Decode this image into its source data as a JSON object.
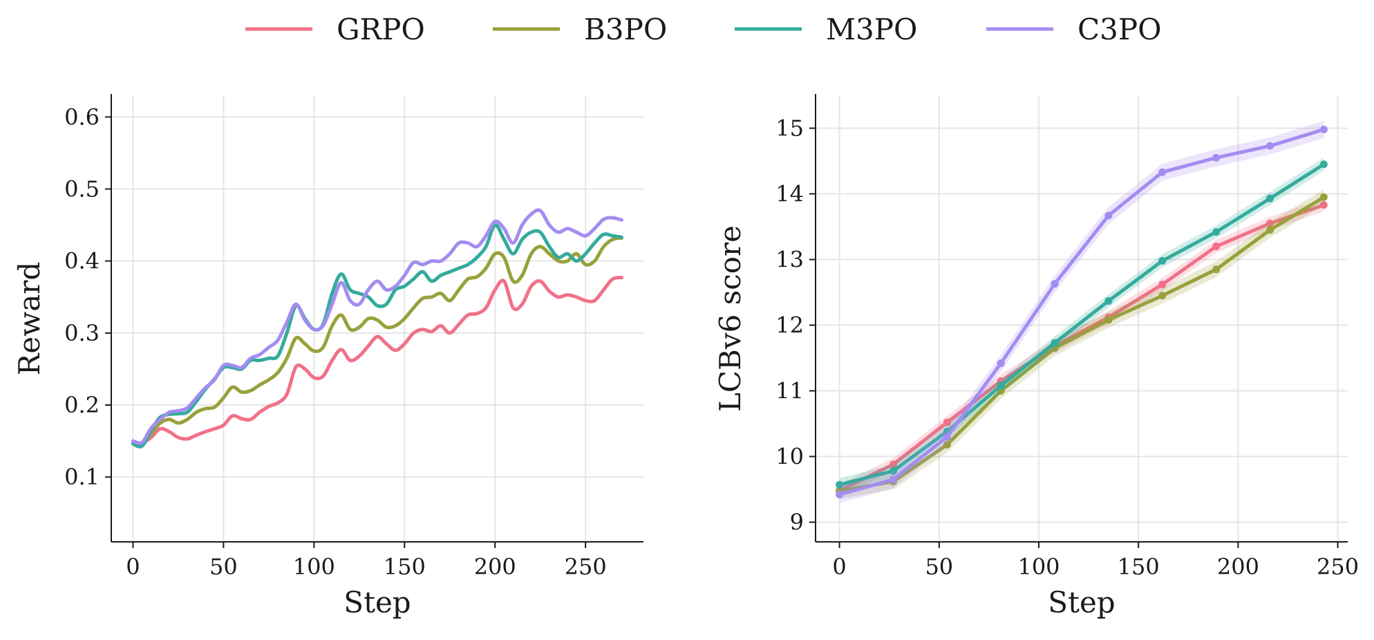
{
  "legend": {
    "items": [
      {
        "label": "GRPO",
        "color": "#F07188"
      },
      {
        "label": "B3PO",
        "color": "#98A13B"
      },
      {
        "label": "M3PO",
        "color": "#34AB9D"
      },
      {
        "label": "C3PO",
        "color": "#A48CF1"
      }
    ]
  },
  "chart_data": [
    {
      "type": "line",
      "xlabel": "Step",
      "ylabel": "Reward",
      "xlim": [
        -12,
        282
      ],
      "ylim": [
        0.01,
        0.63
      ],
      "xticks": [
        0,
        50,
        100,
        150,
        200,
        250
      ],
      "yticks": [
        0.1,
        0.2,
        0.3,
        0.4,
        0.5,
        0.6
      ],
      "xtick_labels": [
        "0",
        "50",
        "100",
        "150",
        "200",
        "250"
      ],
      "ytick_labels": [
        "0.1",
        "0.2",
        "0.3",
        "0.4",
        "0.5",
        "0.6"
      ],
      "grid": true,
      "x": [
        0,
        5,
        10,
        15,
        20,
        25,
        30,
        35,
        40,
        45,
        50,
        55,
        60,
        65,
        70,
        75,
        80,
        85,
        90,
        95,
        100,
        105,
        110,
        115,
        120,
        125,
        130,
        135,
        140,
        145,
        150,
        155,
        160,
        165,
        170,
        175,
        180,
        185,
        190,
        195,
        200,
        205,
        210,
        215,
        220,
        225,
        230,
        235,
        240,
        245,
        250,
        255,
        260,
        265,
        270
      ],
      "series": [
        {
          "name": "GRPO",
          "color": "#F07188",
          "values": [
            0.148,
            0.147,
            0.155,
            0.167,
            0.163,
            0.155,
            0.153,
            0.158,
            0.163,
            0.167,
            0.172,
            0.185,
            0.181,
            0.18,
            0.19,
            0.198,
            0.203,
            0.215,
            0.253,
            0.25,
            0.238,
            0.24,
            0.262,
            0.277,
            0.262,
            0.268,
            0.282,
            0.295,
            0.285,
            0.276,
            0.285,
            0.3,
            0.305,
            0.302,
            0.31,
            0.3,
            0.312,
            0.325,
            0.327,
            0.335,
            0.36,
            0.372,
            0.335,
            0.34,
            0.365,
            0.372,
            0.358,
            0.35,
            0.353,
            0.35,
            0.345,
            0.345,
            0.36,
            0.375,
            0.377
          ]
        },
        {
          "name": "B3PO",
          "color": "#98A13B",
          "values": [
            0.147,
            0.145,
            0.16,
            0.175,
            0.18,
            0.175,
            0.18,
            0.19,
            0.195,
            0.197,
            0.21,
            0.225,
            0.218,
            0.22,
            0.228,
            0.235,
            0.245,
            0.265,
            0.293,
            0.285,
            0.275,
            0.28,
            0.31,
            0.325,
            0.305,
            0.308,
            0.32,
            0.318,
            0.308,
            0.31,
            0.32,
            0.335,
            0.348,
            0.35,
            0.355,
            0.345,
            0.36,
            0.375,
            0.378,
            0.39,
            0.41,
            0.405,
            0.372,
            0.38,
            0.41,
            0.42,
            0.41,
            0.4,
            0.4,
            0.41,
            0.395,
            0.4,
            0.42,
            0.43,
            0.432
          ]
        },
        {
          "name": "M3PO",
          "color": "#34AB9D",
          "values": [
            0.146,
            0.143,
            0.165,
            0.183,
            0.187,
            0.188,
            0.19,
            0.205,
            0.222,
            0.236,
            0.252,
            0.252,
            0.25,
            0.262,
            0.262,
            0.265,
            0.268,
            0.3,
            0.338,
            0.32,
            0.305,
            0.312,
            0.355,
            0.382,
            0.36,
            0.355,
            0.35,
            0.338,
            0.34,
            0.36,
            0.365,
            0.375,
            0.385,
            0.372,
            0.38,
            0.385,
            0.39,
            0.395,
            0.405,
            0.42,
            0.45,
            0.43,
            0.41,
            0.43,
            0.44,
            0.44,
            0.42,
            0.405,
            0.41,
            0.4,
            0.41,
            0.425,
            0.437,
            0.435,
            0.433
          ]
        },
        {
          "name": "C3PO",
          "color": "#A48CF1",
          "values": [
            0.15,
            0.148,
            0.168,
            0.18,
            0.19,
            0.192,
            0.196,
            0.21,
            0.224,
            0.235,
            0.255,
            0.255,
            0.252,
            0.265,
            0.27,
            0.28,
            0.29,
            0.315,
            0.34,
            0.318,
            0.305,
            0.31,
            0.34,
            0.37,
            0.345,
            0.34,
            0.36,
            0.372,
            0.36,
            0.365,
            0.38,
            0.398,
            0.395,
            0.4,
            0.4,
            0.41,
            0.425,
            0.425,
            0.42,
            0.435,
            0.455,
            0.445,
            0.425,
            0.45,
            0.465,
            0.47,
            0.45,
            0.44,
            0.445,
            0.44,
            0.435,
            0.445,
            0.458,
            0.46,
            0.457
          ]
        }
      ]
    },
    {
      "type": "line",
      "xlabel": "Step",
      "ylabel": "LCBv6 score",
      "xlim": [
        -12,
        255
      ],
      "ylim": [
        8.7,
        15.5
      ],
      "xticks": [
        0,
        50,
        100,
        150,
        200,
        250
      ],
      "yticks": [
        9,
        10,
        11,
        12,
        13,
        14,
        15
      ],
      "xtick_labels": [
        "0",
        "50",
        "100",
        "150",
        "200",
        "250"
      ],
      "ytick_labels": [
        "9",
        "10",
        "11",
        "12",
        "13",
        "14",
        "15"
      ],
      "grid": true,
      "x": [
        0,
        27,
        54,
        81,
        108,
        135,
        162,
        189,
        216,
        243
      ],
      "series": [
        {
          "name": "GRPO",
          "color": "#F07188",
          "values": [
            9.48,
            9.88,
            10.52,
            11.15,
            11.68,
            12.12,
            12.62,
            13.2,
            13.55,
            13.83
          ],
          "band": 0.1
        },
        {
          "name": "B3PO",
          "color": "#98A13B",
          "values": [
            9.47,
            9.62,
            10.18,
            11.0,
            11.65,
            12.08,
            12.45,
            12.85,
            13.45,
            13.95
          ],
          "band": 0.12
        },
        {
          "name": "M3PO",
          "color": "#34AB9D",
          "values": [
            9.57,
            9.78,
            10.38,
            11.08,
            11.73,
            12.37,
            12.98,
            13.42,
            13.93,
            14.45
          ],
          "band": 0.1
        },
        {
          "name": "C3PO",
          "color": "#A48CF1",
          "values": [
            9.42,
            9.65,
            10.3,
            11.42,
            12.63,
            13.67,
            14.33,
            14.55,
            14.73,
            14.98
          ],
          "band": 0.13
        }
      ]
    }
  ]
}
